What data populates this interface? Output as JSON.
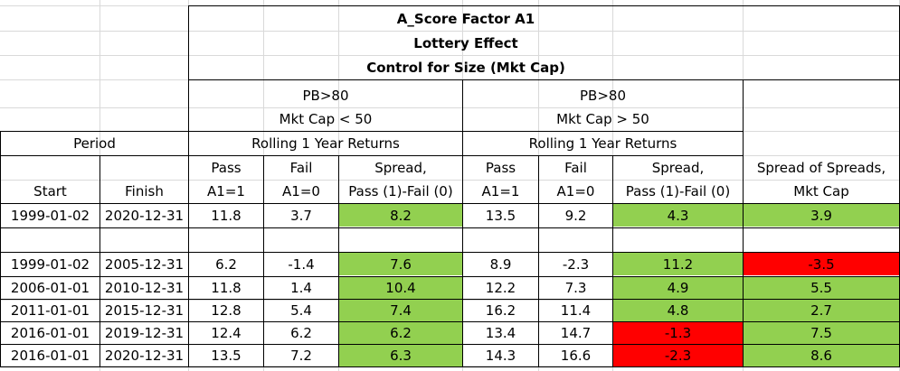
{
  "title_lines": [
    "A_Score Factor A1",
    "Lottery Effect",
    "Control for Size (Mkt Cap)"
  ],
  "group1": {
    "line1": "PB>80",
    "line2": "Mkt Cap < 50",
    "returns_label": "Rolling 1 Year Returns"
  },
  "group2": {
    "line1": "PB>80",
    "line2": "Mkt Cap > 50",
    "returns_label": "Rolling 1 Year Returns"
  },
  "period_label": "Period",
  "headers": {
    "start": "Start",
    "finish": "Finish",
    "pass_line1": "Pass",
    "pass_line2": "A1=1",
    "fail_line1": "Fail",
    "fail_line2": "A1=0",
    "spread_line1": "Spread,",
    "spread_line2": "Pass (1)-Fail (0)",
    "sos_line1": "Spread of Spreads,",
    "sos_line2": "Mkt Cap"
  },
  "rows": [
    {
      "start": "1999-01-02",
      "finish": "2020-12-31",
      "pass1": "11.8",
      "fail1": "3.7",
      "spread1": "8.2",
      "pass2": "13.5",
      "fail2": "9.2",
      "spread2": "4.3",
      "sos": "3.9"
    },
    {
      "start": "1999-01-02",
      "finish": "2005-12-31",
      "pass1": "6.2",
      "fail1": "-1.4",
      "spread1": "7.6",
      "pass2": "8.9",
      "fail2": "-2.3",
      "spread2": "11.2",
      "sos": "-3.5"
    },
    {
      "start": "2006-01-01",
      "finish": "2010-12-31",
      "pass1": "11.8",
      "fail1": "1.4",
      "spread1": "10.4",
      "pass2": "12.2",
      "fail2": "7.3",
      "spread2": "4.9",
      "sos": "5.5"
    },
    {
      "start": "2011-01-01",
      "finish": "2015-12-31",
      "pass1": "12.8",
      "fail1": "5.4",
      "spread1": "7.4",
      "pass2": "16.2",
      "fail2": "11.4",
      "spread2": "4.8",
      "sos": "2.7"
    },
    {
      "start": "2016-01-01",
      "finish": "2019-12-31",
      "pass1": "12.4",
      "fail1": "6.2",
      "spread1": "6.2",
      "pass2": "13.4",
      "fail2": "14.7",
      "spread2": "-1.3",
      "sos": "7.5"
    },
    {
      "start": "2016-01-01",
      "finish": "2020-12-31",
      "pass1": "13.5",
      "fail1": "7.2",
      "spread1": "6.3",
      "pass2": "14.3",
      "fail2": "16.6",
      "spread2": "-2.3",
      "sos": "8.6"
    }
  ],
  "colors": {
    "positive": "#92d050",
    "negative": "#ff0000",
    "gridline": "#d9d9d9",
    "border": "#000000"
  }
}
